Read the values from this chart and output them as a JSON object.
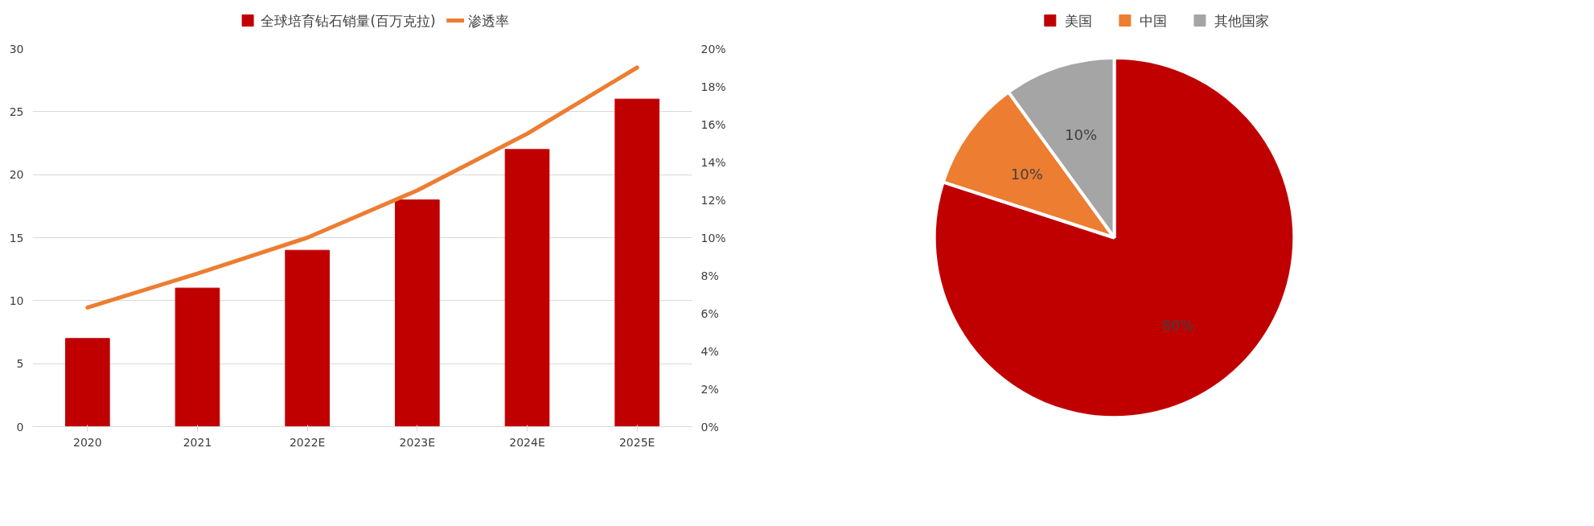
{
  "chart_data": [
    {
      "type": "bar",
      "categories": [
        "2020",
        "2021",
        "2022E",
        "2023E",
        "2024E",
        "2025E"
      ],
      "series": [
        {
          "name": "全球培育钻石销量(百万克拉)",
          "color": "#c00000",
          "values": [
            7,
            11,
            14,
            18,
            22,
            26
          ]
        },
        {
          "name": "渗透率",
          "type": "line",
          "axis": "y2",
          "color": "#ed7d31",
          "values": [
            6.3,
            8.1,
            10.0,
            12.5,
            15.5,
            19.0
          ]
        }
      ],
      "ylim": [
        0,
        30
      ],
      "yticks": [
        0,
        5,
        10,
        15,
        20,
        25,
        30
      ],
      "y2lim": [
        0,
        20
      ],
      "y2ticks": [
        {
          "value": 0,
          "label": "0%"
        },
        {
          "value": 2,
          "label": "2%"
        },
        {
          "value": 4,
          "label": "4%"
        },
        {
          "value": 6,
          "label": "6%"
        },
        {
          "value": 8,
          "label": "8%"
        },
        {
          "value": 10,
          "label": "10%"
        },
        {
          "value": 12,
          "label": "12%"
        },
        {
          "value": 14,
          "label": "14%"
        },
        {
          "value": 16,
          "label": "16%"
        },
        {
          "value": 18,
          "label": "18%"
        },
        {
          "value": 20,
          "label": "20%"
        }
      ],
      "grid": "y",
      "legend": "top"
    },
    {
      "type": "pie",
      "categories": [
        "美国",
        "中国",
        "其他国家"
      ],
      "values": [
        80,
        10,
        10
      ],
      "colors": [
        "#c00000",
        "#ed7d31",
        "#a5a5a5"
      ],
      "value_labels": [
        "80%",
        "10%",
        "10%"
      ],
      "legend": "top"
    }
  ]
}
